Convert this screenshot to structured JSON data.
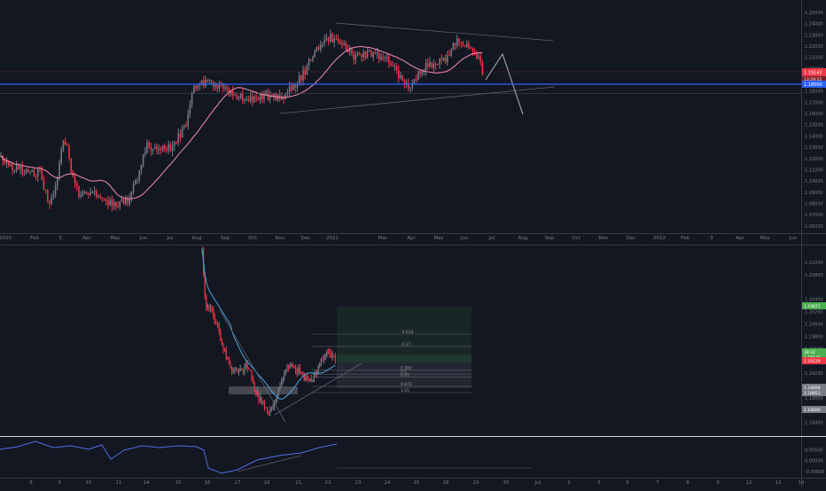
{
  "chart_data": [
    {
      "type": "candlestick",
      "panel": "top",
      "instrument": "EURUSD",
      "timeframe": "daily",
      "x_axis_labels": [
        "2020",
        "Feb",
        "3",
        "Apr",
        "May",
        "Jun",
        "Jul",
        "Aug",
        "Sep",
        "Oct",
        "Nov",
        "Dec",
        "2021",
        "Mar",
        "Apr",
        "May",
        "Jun",
        "Jul",
        "Aug",
        "Sep",
        "Oct",
        "Nov",
        "Dec",
        "2022",
        "Feb",
        "3",
        "Apr",
        "May",
        "Jun"
      ],
      "y_axis_labels": [
        "1.25000",
        "1.24000",
        "1.23000",
        "1.22000",
        "1.21000",
        "1.20000",
        "1.19000",
        "1.18000",
        "1.17000",
        "1.16000",
        "1.15000",
        "1.14000",
        "1.13000",
        "1.12000",
        "1.11000",
        "1.10000",
        "1.09000",
        "1.08000",
        "1.07000",
        "1.06000"
      ],
      "ylim": [
        1.0575,
        1.2555
      ],
      "price_tag": {
        "value": "1.19142",
        "countdown": "13:29:52",
        "color": "#f23645"
      },
      "horizontal_line": {
        "value": "1.18500",
        "color": "#2962ff"
      },
      "moving_average_color": "#f48fb1",
      "candle_colors": {
        "up": "#787b86",
        "down": "#f23645"
      },
      "grid": false,
      "legend": "none"
    },
    {
      "type": "candlestick",
      "panel": "middle",
      "instrument": "EURUSD",
      "timeframe": "intraday",
      "x_axis_labels": [
        "8",
        "9",
        "10",
        "11",
        "14",
        "15",
        "16",
        "17",
        "18",
        "21",
        "22",
        "23",
        "24",
        "25",
        "28",
        "29",
        "30",
        "Jul",
        "2",
        "5",
        "6",
        "7",
        "8",
        "9",
        "12",
        "13",
        "14"
      ],
      "y_axis_labels": [
        "1.21000",
        "1.20800",
        "1.20400",
        "1.20200",
        "1.20000",
        "1.19800",
        "1.19600",
        "1.19400",
        "1.19200",
        "1.19000",
        "1.18800",
        "1.18600",
        "1.18400"
      ],
      "ylim": [
        1.1828,
        1.2113
      ],
      "price_tags": [
        {
          "value": "1.19871",
          "color": "#4caf50"
        },
        {
          "value": "1.19120",
          "color": "#4caf50"
        },
        {
          "value": "38:32",
          "color": "#4caf50"
        },
        {
          "value": "1.19129",
          "color": "#f23645"
        },
        {
          "value": "1.18898",
          "color": "#787b86"
        },
        {
          "value": "1.18853",
          "color": "#787b86"
        },
        {
          "value": "1.18609",
          "color": "#787b86"
        }
      ],
      "fib_levels": [
        {
          "label": "-0.618",
          "value": 1.1982
        },
        {
          "label": "-0.27",
          "value": 1.1962
        },
        {
          "label": "0.382",
          "value": 1.1924
        },
        {
          "label": "0.5",
          "value": 1.1917
        },
        {
          "label": "0.61",
          "value": 1.1912
        },
        {
          "label": "0.872",
          "value": 1.1897
        },
        {
          "label": "1.05",
          "value": 1.1887
        }
      ],
      "moving_average_color": "#4fa3e0",
      "grid": false,
      "legend": "none"
    },
    {
      "type": "line",
      "panel": "oscillator",
      "y_axis_labels": [
        "0.00500",
        "0.00000",
        "-0.00500"
      ],
      "ylim": [
        -0.0074,
        0.0092
      ],
      "line_color": "#4f6fe3",
      "grid": false,
      "legend": "none"
    }
  ]
}
